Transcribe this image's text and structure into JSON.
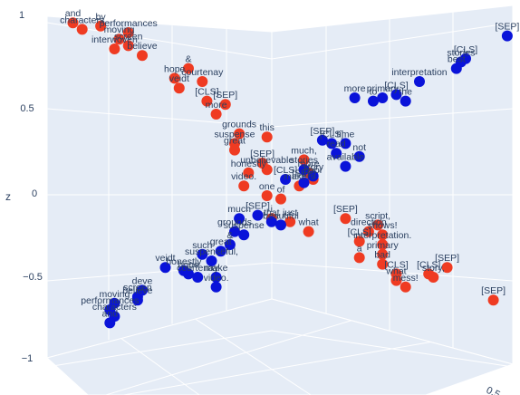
{
  "chart_data": {
    "type": "scatter",
    "title": "",
    "z_axis": {
      "title": "z",
      "ticks": [
        1,
        0.5,
        0,
        -0.5,
        -1
      ],
      "tick_labels": [
        "1",
        "0.5",
        "0",
        "−0.5",
        "−1"
      ]
    },
    "right_axis": {
      "ticks": [
        0.5
      ],
      "tick_labels": [
        "0.5"
      ]
    },
    "colors": {
      "red_series": "#ef3b22",
      "blue_series": "#0a13d9",
      "scene_bg": "#e5ecf6",
      "grid": "#ffffff",
      "text": "#2a3f5f"
    },
    "series": [
      {
        "color": "#ef3b22",
        "points": [
          {
            "text": "and",
            "x": 0.05,
            "y": 0.02,
            "z": 0.98
          },
          {
            "text": "by",
            "x": 0.11,
            "y": 0.03,
            "z": 0.97
          },
          {
            "text": "characters",
            "x": 0.07,
            "y": 0.04,
            "z": 0.95
          },
          {
            "text": "performances",
            "x": 0.17,
            "y": 0.05,
            "z": 0.94
          },
          {
            "text": "moving",
            "x": 0.15,
            "y": 0.07,
            "z": 0.92
          },
          {
            "text": "screen",
            "x": 0.17,
            "y": 0.09,
            "z": 0.9
          },
          {
            "text": "interwoven",
            "x": 0.14,
            "y": 0.1,
            "z": 0.88
          },
          {
            "text": "believe",
            "x": 0.2,
            "y": 0.12,
            "z": 0.87
          },
          {
            "text": "&",
            "x": 0.3,
            "y": 0.16,
            "z": 0.82
          },
          {
            "text": "hope",
            "x": 0.27,
            "y": 0.19,
            "z": 0.78
          },
          {
            "text": "courtenay",
            "x": 0.33,
            "y": 0.2,
            "z": 0.77
          },
          {
            "text": "veidt",
            "x": 0.28,
            "y": 0.22,
            "z": 0.75
          },
          {
            "text": "[CLS]",
            "x": 0.34,
            "y": 0.26,
            "z": 0.7
          },
          {
            "text": "[SEP]",
            "x": 0.38,
            "y": 0.27,
            "z": 0.69
          },
          {
            "text": "more",
            "x": 0.36,
            "y": 0.3,
            "z": 0.66
          },
          {
            "text": "grounds",
            "x": 0.41,
            "y": 0.36,
            "z": 0.58
          },
          {
            "text": "this",
            "x": 0.47,
            "y": 0.37,
            "z": 0.57
          },
          {
            "text": "suspense",
            "x": 0.4,
            "y": 0.39,
            "z": 0.55
          },
          {
            "text": "great",
            "x": 0.4,
            "y": 0.41,
            "z": 0.52
          },
          {
            "text": "much,",
            "x": 0.55,
            "y": 0.44,
            "z": 0.48
          },
          {
            "text": "[SEP]",
            "x": 0.46,
            "y": 0.45,
            "z": 0.47
          },
          {
            "text": "unbelievable",
            "x": 0.47,
            "y": 0.47,
            "z": 0.44
          },
          {
            "text": "honestly",
            "x": 0.43,
            "y": 0.48,
            "z": 0.43
          },
          {
            "text": "more",
            "x": 0.56,
            "y": 0.48,
            "z": 0.42
          },
          {
            "text": "poor",
            "x": 0.57,
            "y": 0.5,
            "z": 0.4
          },
          {
            "text": "video.",
            "x": 0.42,
            "y": 0.52,
            "z": 0.37
          },
          {
            "text": "makers",
            "x": 0.54,
            "y": 0.52,
            "z": 0.36
          },
          {
            "text": "one",
            "x": 0.47,
            "y": 0.55,
            "z": 0.33
          },
          {
            "text": "of",
            "x": 0.5,
            "y": 0.56,
            "z": 0.32
          },
          {
            "text": "i",
            "x": 0.48,
            "y": 0.62,
            "z": 0.24
          },
          {
            "text": "just",
            "x": 0.52,
            "y": 0.63,
            "z": 0.22
          },
          {
            "text": "what",
            "x": 0.56,
            "y": 0.66,
            "z": 0.19
          },
          {
            "text": "[SEP]",
            "x": 0.64,
            "y": 0.62,
            "z": 0.25
          },
          {
            "text": "script,",
            "x": 0.71,
            "y": 0.64,
            "z": 0.22
          },
          {
            "text": "shows!",
            "x": 0.72,
            "y": 0.67,
            "z": 0.19
          },
          {
            "text": "direction",
            "x": 0.69,
            "y": 0.66,
            "z": 0.21
          },
          {
            "text": "[CLS]",
            "x": 0.67,
            "y": 0.69,
            "z": 0.16
          },
          {
            "text": "interpretation.",
            "x": 0.72,
            "y": 0.7,
            "z": 0.15
          },
          {
            "text": "a",
            "x": 0.67,
            "y": 0.74,
            "z": 0.1
          },
          {
            "text": "primary",
            "x": 0.72,
            "y": 0.73,
            "z": 0.11
          },
          {
            "text": "bad",
            "x": 0.72,
            "y": 0.76,
            "z": 0.08
          },
          {
            "text": "[CLS]",
            "x": 0.75,
            "y": 0.79,
            "z": 0.04
          },
          {
            "text": "[SEP]",
            "x": 0.86,
            "y": 0.77,
            "z": 0.07
          },
          {
            "text": "[CLS]",
            "x": 0.82,
            "y": 0.79,
            "z": 0.04
          },
          {
            "text": "story,",
            "x": 0.83,
            "y": 0.8,
            "z": 0.03
          },
          {
            "text": "what",
            "x": 0.75,
            "y": 0.81,
            "z": 0.0
          },
          {
            "text": "mess!",
            "x": 0.77,
            "y": 0.83,
            "z": -0.02
          },
          {
            "text": "[SEP]",
            "x": 0.96,
            "y": 0.87,
            "z": -0.08
          }
        ]
      },
      {
        "color": "#0a13d9",
        "points": [
          {
            "text": "[SEP]",
            "x": 0.99,
            "y": 0.06,
            "z": 0.93
          },
          {
            "text": "[CLS]",
            "x": 0.9,
            "y": 0.13,
            "z": 0.84
          },
          {
            "text": "stories",
            "x": 0.89,
            "y": 0.14,
            "z": 0.82
          },
          {
            "text": "best",
            "x": 0.88,
            "y": 0.16,
            "z": 0.8
          },
          {
            "text": "interpretation",
            "x": 0.8,
            "y": 0.2,
            "z": 0.75
          },
          {
            "text": "more",
            "x": 0.66,
            "y": 0.25,
            "z": 0.69
          },
          {
            "text": "primary",
            "x": 0.72,
            "y": 0.25,
            "z": 0.68
          },
          {
            "text": "[CLS]",
            "x": 0.75,
            "y": 0.24,
            "z": 0.7
          },
          {
            "text": "to",
            "x": 0.7,
            "y": 0.26,
            "z": 0.67
          },
          {
            "text": "the",
            "x": 0.77,
            "y": 0.26,
            "z": 0.67
          },
          {
            "text": "[SEP]",
            "x": 0.59,
            "y": 0.38,
            "z": 0.52
          },
          {
            "text": "[CLS]",
            "x": 0.61,
            "y": 0.39,
            "z": 0.51
          },
          {
            "text": "time",
            "x": 0.64,
            "y": 0.39,
            "z": 0.5
          },
          {
            "text": "read",
            "x": 0.62,
            "y": 0.42,
            "z": 0.47
          },
          {
            "text": "not",
            "x": 0.67,
            "y": 0.43,
            "z": 0.46
          },
          {
            "text": "available",
            "x": 0.64,
            "y": 0.46,
            "z": 0.42
          },
          {
            "text": "stories",
            "x": 0.55,
            "y": 0.47,
            "z": 0.41
          },
          {
            "text": "story",
            "x": 0.57,
            "y": 0.49,
            "z": 0.38
          },
          {
            "text": "[CLS]",
            "x": 0.51,
            "y": 0.5,
            "z": 0.37
          },
          {
            "text": "[SEP]",
            "x": 0.55,
            "y": 0.51,
            "z": 0.36
          },
          {
            "text": "much",
            "x": 0.41,
            "y": 0.62,
            "z": 0.23
          },
          {
            "text": "[SEP]",
            "x": 0.45,
            "y": 0.61,
            "z": 0.24
          },
          {
            "text": "that",
            "x": 0.48,
            "y": 0.63,
            "z": 0.22
          },
          {
            "text": "beautiful",
            "x": 0.5,
            "y": 0.64,
            "z": 0.21
          },
          {
            "text": "grounds",
            "x": 0.4,
            "y": 0.66,
            "z": 0.19
          },
          {
            "text": "suspense",
            "x": 0.42,
            "y": 0.67,
            "z": 0.18
          },
          {
            "text": "&",
            "x": 0.39,
            "y": 0.7,
            "z": 0.14
          },
          {
            "text": "great",
            "x": 0.37,
            "y": 0.72,
            "z": 0.11
          },
          {
            "text": "such",
            "x": 0.33,
            "y": 0.73,
            "z": 0.1
          },
          {
            "text": "suspenseful,",
            "x": 0.35,
            "y": 0.75,
            "z": 0.07
          },
          {
            "text": "veidt",
            "x": 0.25,
            "y": 0.77,
            "z": 0.05
          },
          {
            "text": "honestly",
            "x": 0.29,
            "y": 0.78,
            "z": 0.04
          },
          {
            "text": "hope",
            "x": 0.3,
            "y": 0.79,
            "z": 0.03
          },
          {
            "text": "courtenay",
            "x": 0.32,
            "y": 0.8,
            "z": 0.02
          },
          {
            "text": "make",
            "x": 0.36,
            "y": 0.8,
            "z": 0.01
          },
          {
            "text": "video.",
            "x": 0.36,
            "y": 0.83,
            "z": -0.02
          },
          {
            "text": "deve",
            "x": 0.2,
            "y": 0.84,
            "z": -0.04
          },
          {
            "text": "screen",
            "x": 0.19,
            "y": 0.86,
            "z": -0.06
          },
          {
            "text": "believe",
            "x": 0.19,
            "y": 0.87,
            "z": -0.07
          },
          {
            "text": "moving",
            "x": 0.14,
            "y": 0.88,
            "z": -0.09
          },
          {
            "text": "performances",
            "x": 0.13,
            "y": 0.9,
            "z": -0.11
          },
          {
            "text": "characters",
            "x": 0.14,
            "y": 0.92,
            "z": -0.13
          },
          {
            "text": "and",
            "x": 0.13,
            "y": 0.94,
            "z": -0.16
          }
        ]
      }
    ]
  }
}
